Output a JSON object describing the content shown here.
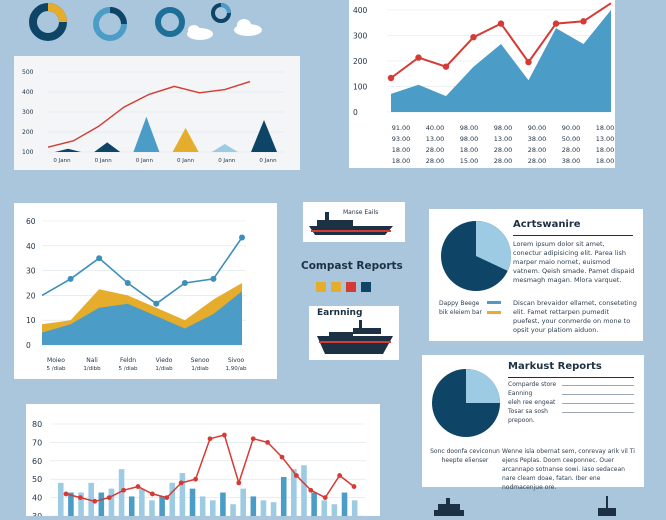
{
  "colors": {
    "bg": "#a9c6dc",
    "navy": "#0e4466",
    "blue": "#4b9cc6",
    "light": "#9ccbe3",
    "yellow": "#e6ac2b",
    "red": "#d63a34",
    "grid": "#dbe3ea"
  },
  "icons": [
    "donut-chart-icon",
    "donut-chart-icon",
    "donut-chart-icon",
    "cloud-icon",
    "donut-chart-icon",
    "cloud-icon",
    "ship-icon",
    "ship-icon",
    "ship-icon"
  ],
  "charts": [
    {
      "id": "chart-top-left",
      "type": "bar+line",
      "y_ticks": [
        "500",
        "400",
        "300",
        "200",
        "100"
      ],
      "ylim": [
        0,
        500
      ],
      "x_labels": [
        "0 Jann",
        "0 Jann",
        "0 Jann",
        "0 Jann",
        "0 Jann",
        "0 Jann"
      ],
      "bars": [
        20,
        60,
        220,
        150,
        50,
        200
      ],
      "line": [
        30,
        70,
        160,
        280,
        360,
        410,
        370,
        390,
        440
      ]
    },
    {
      "id": "chart-top-right",
      "type": "area+line",
      "y_ticks": [
        "400",
        "300",
        "200",
        "100",
        "0"
      ],
      "ylim": [
        0,
        450
      ],
      "area": [
        80,
        120,
        70,
        200,
        300,
        140,
        370,
        300,
        450
      ],
      "line": [
        150,
        240,
        200,
        330,
        390,
        220,
        390,
        400,
        480
      ],
      "table": [
        [
          "91.00",
          "40.00",
          "98.00",
          "98.00",
          "90.00",
          "90.00",
          "18.00"
        ],
        [
          "93.00",
          "13.00",
          "98.00",
          "13.00",
          "38.00",
          "50.00",
          "13.00"
        ],
        [
          "18.00",
          "28.00",
          "18.00",
          "28.00",
          "28.00",
          "28.00",
          "18.00"
        ],
        [
          "18.00",
          "28.00",
          "15.00",
          "28.00",
          "28.00",
          "38.00",
          "18.00"
        ]
      ]
    },
    {
      "id": "chart-middle-left",
      "type": "area+line",
      "y_ticks": [
        "60",
        "40",
        "30",
        "20",
        "10",
        "0"
      ],
      "ylim": [
        0,
        60
      ],
      "x_labels": [
        [
          "Moieo",
          "5 /diab"
        ],
        [
          "Nali",
          "1/dibb"
        ],
        [
          "Feldn",
          "5 /diab"
        ],
        [
          "Viedo",
          "1/diab"
        ],
        [
          "Senoo",
          "1/diab"
        ],
        [
          "Sivoo",
          "1,90/ab"
        ]
      ],
      "area_yellow": [
        10,
        12,
        27,
        24,
        18,
        12,
        22,
        30
      ],
      "area_blue": [
        6,
        10,
        18,
        20,
        14,
        8,
        15,
        26
      ],
      "line": [
        24,
        32,
        42,
        30,
        20,
        30,
        32,
        52
      ]
    },
    {
      "id": "chart-bottom-left",
      "type": "bar+line",
      "y_ticks": [
        "80",
        "70",
        "60",
        "50",
        "40",
        "30"
      ],
      "ylim": [
        30,
        80
      ],
      "bars": [
        15,
        10,
        10,
        15,
        10,
        12,
        22,
        8,
        12,
        6,
        8,
        15,
        20,
        12,
        8,
        6,
        10,
        4,
        12,
        8,
        6,
        5,
        18,
        22,
        24,
        10,
        6,
        4,
        10,
        6
      ],
      "line": [
        42,
        40,
        38,
        40,
        44,
        46,
        42,
        40,
        48,
        50,
        72,
        74,
        48,
        72,
        70,
        62,
        52,
        44,
        40,
        52,
        46
      ]
    }
  ],
  "reports": {
    "achievement": {
      "title": "Acrtswanire",
      "body": "Lorem ipsum dolor sit amet, conectur adipisicing elit. Parea lish marper maio nornet, euismod vatnem. Qeish smade. Pamet dispaid mesmagh magan. Mlora varquet.",
      "legend": [
        "Dappy Beege",
        "bik eleiem bar"
      ],
      "body2": "Discan brevaidor ellamet, conseteting elit. Famet rettarpen pumedit puefest, your conmerde on mone to opsit your platiom aiduon.",
      "pie": [
        0.32,
        0.68
      ]
    },
    "compact": {
      "title": "Compast Reports",
      "swatches": [
        "#e6ac2b",
        "#e6ac2b",
        "#d63a34",
        "#0e4466"
      ]
    },
    "earning": {
      "title": "Earnning"
    },
    "market": {
      "title": "Markust Reports",
      "side_lines": [
        "Comparde store",
        "Eanning",
        "eleh ree engeat",
        "Tosar sa sosh",
        "prepoon."
      ],
      "caption": "Sonc doonfa ceviconun heepte elienser",
      "body": "Wenne isla obernat sem, conrevay arik vil Ti ejens Peplas. Doom ceeponnec. Ouer arcannapo sotnanse sowi. Iaso sedacean nare cleam doae, fatan. Iber ene nodmacenjue ore.",
      "pie": [
        0.25,
        0.75
      ]
    },
    "ship_label": "Manse Eails"
  }
}
